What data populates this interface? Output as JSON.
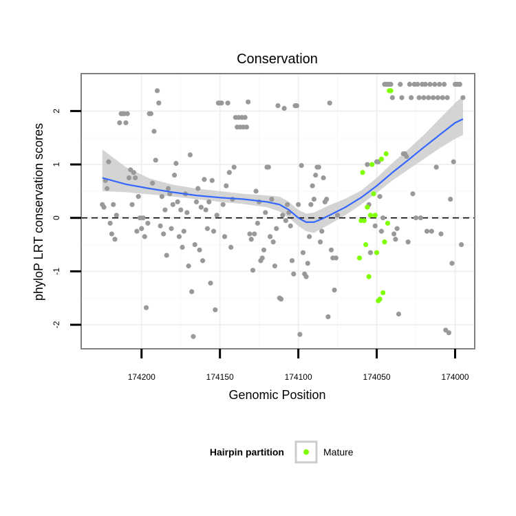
{
  "colors": {
    "background_point": "#999999",
    "mature_point": "#7fff00",
    "smooth_line": "#3366ff",
    "ribbon": "#cccccc",
    "panel_border": "#808080",
    "grid_major": "#f0f0f0",
    "grid_minor": "#f8f8f8"
  },
  "chart_data": {
    "type": "scatter",
    "title": "Conservation",
    "xlabel": "Genomic Position",
    "ylabel": "phyloP LRT conservation scores",
    "x_reversed": true,
    "xlim": [
      174238.5,
      173987.5
    ],
    "ylim": [
      -2.45,
      2.7
    ],
    "x_ticks": [
      174200,
      174150,
      174100,
      174050,
      174000
    ],
    "x_tick_labels": [
      "174200",
      "174150",
      "174100",
      "174050",
      "174000"
    ],
    "y_ticks": [
      -2,
      -1,
      0,
      1,
      2
    ],
    "y_tick_labels": [
      "-2",
      "-1",
      "0",
      "1",
      "2"
    ],
    "grid": true,
    "reference_line": {
      "y": 0,
      "style": "dashed"
    },
    "legend": {
      "title": "Hairpin partition",
      "position": "bottom",
      "entries": [
        {
          "label": "Mature",
          "color": "#7fff00"
        }
      ]
    },
    "series": [
      {
        "role": "background",
        "points": [
          [
            174225,
            0.25
          ],
          [
            174224,
            0.2
          ],
          [
            174223,
            0.7
          ],
          [
            174222,
            0.55
          ],
          [
            174221,
            1.05
          ],
          [
            174220,
            -0.1
          ],
          [
            174219,
            -0.3
          ],
          [
            174218,
            0.25
          ],
          [
            174217,
            -0.4
          ],
          [
            174216,
            0.05
          ],
          [
            174214,
            1.78
          ],
          [
            174213,
            1.95
          ],
          [
            174212,
            1.95
          ],
          [
            174211,
            1.95
          ],
          [
            174210,
            1.78
          ],
          [
            174209,
            1.95
          ],
          [
            174208,
            0.75
          ],
          [
            174207,
            0.9
          ],
          [
            174206,
            0.25
          ],
          [
            174205,
            0.85
          ],
          [
            174204,
            0.75
          ],
          [
            174203,
            -0.25
          ],
          [
            174202,
            0.4
          ],
          [
            174201,
            0.0
          ],
          [
            174200,
            -0.2
          ],
          [
            174199,
            0.0
          ],
          [
            174198,
            -0.35
          ],
          [
            174197,
            -1.68
          ],
          [
            174196,
            -0.1
          ],
          [
            174195,
            1.95
          ],
          [
            174194,
            1.95
          ],
          [
            174193,
            0.65
          ],
          [
            174192,
            1.62
          ],
          [
            174191,
            1.08
          ],
          [
            174190,
            2.38
          ],
          [
            174189,
            2.15
          ],
          [
            174188,
            -0.15
          ],
          [
            174187,
            0.4
          ],
          [
            174186,
            -0.3
          ],
          [
            174185,
            0.15
          ],
          [
            174184,
            -0.7
          ],
          [
            174183,
            0.55
          ],
          [
            174182,
            0.45
          ],
          [
            174181,
            -0.2
          ],
          [
            174180,
            0.25
          ],
          [
            174179,
            0.8
          ],
          [
            174178,
            1.02
          ],
          [
            174177,
            0.3
          ],
          [
            174176,
            -0.35
          ],
          [
            174175,
            0.15
          ],
          [
            174174,
            -0.55
          ],
          [
            174173,
            -0.25
          ],
          [
            174172,
            0.45
          ],
          [
            174171,
            0.1
          ],
          [
            174170,
            -0.9
          ],
          [
            174169,
            1.18
          ],
          [
            174168,
            -1.38
          ],
          [
            174167,
            -2.22
          ],
          [
            174166,
            -0.5
          ],
          [
            174165,
            0.3
          ],
          [
            174164,
            0.55
          ],
          [
            174163,
            -0.6
          ],
          [
            174162,
            0.2
          ],
          [
            174161,
            -0.8
          ],
          [
            174160,
            0.72
          ],
          [
            174159,
            0.15
          ],
          [
            174158,
            -0.2
          ],
          [
            174157,
            0.3
          ],
          [
            174156,
            -1.22
          ],
          [
            174155,
            0.7
          ],
          [
            174154,
            -0.25
          ],
          [
            174153,
            -1.72
          ],
          [
            174152,
            0.05
          ],
          [
            174151,
            2.15
          ],
          [
            174150,
            2.15
          ],
          [
            174149,
            2.15
          ],
          [
            174148,
            0.25
          ],
          [
            174147,
            -0.35
          ],
          [
            174146,
            0.6
          ],
          [
            174145,
            2.15
          ],
          [
            174144,
            0.85
          ],
          [
            174143,
            -0.55
          ],
          [
            174142,
            0.35
          ],
          [
            174141,
            0.95
          ],
          [
            174140,
            1.88
          ],
          [
            174139,
            1.7
          ],
          [
            174138,
            1.88
          ],
          [
            174137,
            1.7
          ],
          [
            174136,
            1.88
          ],
          [
            174135,
            1.7
          ],
          [
            174134,
            1.88
          ],
          [
            174133,
            1.7
          ],
          [
            174132,
            2.17
          ],
          [
            174131,
            -0.3
          ],
          [
            174130,
            -0.4
          ],
          [
            174129,
            -0.98
          ],
          [
            174128,
            -0.3
          ],
          [
            174127,
            0.5
          ],
          [
            174126,
            -0.1
          ],
          [
            174125,
            0.3
          ],
          [
            174124,
            -0.8
          ],
          [
            174123,
            -0.75
          ],
          [
            174122,
            -0.6
          ],
          [
            174121,
            0.1
          ],
          [
            174120,
            0.95
          ],
          [
            174119,
            0.95
          ],
          [
            174118,
            -0.35
          ],
          [
            174117,
            0.35
          ],
          [
            174116,
            -0.45
          ],
          [
            174115,
            -0.9
          ],
          [
            174114,
            -0.2
          ],
          [
            174113,
            2.1
          ],
          [
            174112,
            -1.5
          ],
          [
            174111,
            -1.52
          ],
          [
            174110,
            0.05
          ],
          [
            174109,
            2.05
          ],
          [
            174108,
            -0.05
          ],
          [
            174107,
            0.25
          ],
          [
            174106,
            0.1
          ],
          [
            174105,
            -0.15
          ],
          [
            174104,
            -0.8
          ],
          [
            174103,
            -1.05
          ],
          [
            174102,
            2.1
          ],
          [
            174101,
            2.1
          ],
          [
            174100,
            0.25
          ],
          [
            174099,
            -2.18
          ],
          [
            174098,
            0.98
          ],
          [
            174097,
            -0.65
          ],
          [
            174096,
            -1.05
          ],
          [
            174095,
            -1.1
          ],
          [
            174094,
            -0.85
          ],
          [
            174093,
            -0.35
          ],
          [
            174092,
            0.25
          ],
          [
            174091,
            0.6
          ],
          [
            174090,
            0.35
          ],
          [
            174089,
            0.8
          ],
          [
            174088,
            0.95
          ],
          [
            174087,
            0.95
          ],
          [
            174086,
            -0.45
          ],
          [
            174085,
            -0.25
          ],
          [
            174084,
            0.75
          ],
          [
            174083,
            0.3
          ],
          [
            174082,
            0.35
          ],
          [
            174081,
            -1.85
          ],
          [
            174080,
            2.15
          ],
          [
            174079,
            -0.6
          ],
          [
            174078,
            -0.75
          ],
          [
            174077,
            -1.35
          ],
          [
            174076,
            -0.75
          ],
          [
            174075,
            0.05
          ],
          [
            174056,
            1.0
          ],
          [
            174055,
            0.25
          ],
          [
            174054,
            -0.65
          ],
          [
            174051,
            -0.15
          ],
          [
            174050,
            1.05
          ],
          [
            174049,
            1.05
          ],
          [
            174048,
            0.4
          ],
          [
            174047,
            -0.25
          ],
          [
            174046,
            0.0
          ],
          [
            174045,
            2.5
          ],
          [
            174044,
            2.5
          ],
          [
            174043,
            2.5
          ],
          [
            174042,
            2.5
          ],
          [
            174041,
            2.5
          ],
          [
            174040,
            2.25
          ],
          [
            174039,
            -0.3
          ],
          [
            174038,
            -0.4
          ],
          [
            174037,
            -0.2
          ],
          [
            174036,
            -1.8
          ],
          [
            174035,
            2.5
          ],
          [
            174034,
            2.25
          ],
          [
            174033,
            1.2
          ],
          [
            174032,
            1.2
          ],
          [
            174031,
            1.15
          ],
          [
            174030,
            -0.45
          ],
          [
            174029,
            2.5
          ],
          [
            174028,
            2.25
          ],
          [
            174027,
            0.45
          ],
          [
            174026,
            2.5
          ],
          [
            174025,
            0.0
          ],
          [
            174024,
            2.5
          ],
          [
            174023,
            2.25
          ],
          [
            174022,
            0.0
          ],
          [
            174021,
            2.5
          ],
          [
            174020,
            2.25
          ],
          [
            174019,
            2.5
          ],
          [
            174018,
            -0.25
          ],
          [
            174017,
            2.25
          ],
          [
            174016,
            2.5
          ],
          [
            174015,
            -0.25
          ],
          [
            174014,
            2.25
          ],
          [
            174013,
            2.5
          ],
          [
            174012,
            0.95
          ],
          [
            174011,
            2.25
          ],
          [
            174010,
            2.5
          ],
          [
            174009,
            -0.3
          ],
          [
            174008,
            2.25
          ],
          [
            174007,
            2.5
          ],
          [
            174006,
            -2.1
          ],
          [
            174005,
            2.25
          ],
          [
            174004,
            -2.15
          ],
          [
            174003,
            0.35
          ],
          [
            174002,
            -0.85
          ],
          [
            174001,
            1.05
          ],
          [
            174000,
            2.5
          ],
          [
            173999,
            2.5
          ],
          [
            173998,
            2.5
          ],
          [
            173997,
            2.5
          ],
          [
            173996,
            -0.5
          ],
          [
            173995,
            2.25
          ]
        ]
      },
      {
        "name": "Mature",
        "points": [
          [
            174061,
            -0.75
          ],
          [
            174060,
            -0.05
          ],
          [
            174059,
            0.85
          ],
          [
            174058,
            -0.05
          ],
          [
            174057,
            -0.5
          ],
          [
            174056,
            0.2
          ],
          [
            174055,
            -1.1
          ],
          [
            174054,
            0.05
          ],
          [
            174053,
            1.0
          ],
          [
            174052,
            0.45
          ],
          [
            174051,
            0.05
          ],
          [
            174050,
            -0.65
          ],
          [
            174049,
            -1.55
          ],
          [
            174048,
            -1.52
          ],
          [
            174047,
            1.1
          ],
          [
            174046,
            -1.4
          ],
          [
            174045,
            -0.45
          ],
          [
            174044,
            1.2
          ],
          [
            174043,
            -0.1
          ],
          [
            174042,
            2.38
          ],
          [
            174041,
            2.38
          ]
        ]
      }
    ],
    "smooth": [
      [
        174225,
        0.75
      ],
      [
        174210,
        0.63
      ],
      [
        174195,
        0.55
      ],
      [
        174180,
        0.48
      ],
      [
        174165,
        0.42
      ],
      [
        174150,
        0.38
      ],
      [
        174135,
        0.35
      ],
      [
        174120,
        0.3
      ],
      [
        174112,
        0.25
      ],
      [
        174106,
        0.15
      ],
      [
        174100,
        0.0
      ],
      [
        174095,
        -0.08
      ],
      [
        174090,
        -0.08
      ],
      [
        174085,
        -0.02
      ],
      [
        174080,
        0.05
      ],
      [
        174070,
        0.2
      ],
      [
        174060,
        0.38
      ],
      [
        174050,
        0.6
      ],
      [
        174040,
        0.85
      ],
      [
        174030,
        1.08
      ],
      [
        174020,
        1.32
      ],
      [
        174010,
        1.55
      ],
      [
        174000,
        1.78
      ],
      [
        173995,
        1.85
      ]
    ],
    "ribbon_lower": [
      [
        174225,
        0.5
      ],
      [
        174210,
        0.48
      ],
      [
        174195,
        0.44
      ],
      [
        174180,
        0.4
      ],
      [
        174165,
        0.35
      ],
      [
        174150,
        0.3
      ],
      [
        174135,
        0.26
      ],
      [
        174120,
        0.2
      ],
      [
        174112,
        0.12
      ],
      [
        174106,
        0.0
      ],
      [
        174100,
        -0.15
      ],
      [
        174095,
        -0.25
      ],
      [
        174090,
        -0.28
      ],
      [
        174085,
        -0.2
      ],
      [
        174080,
        -0.12
      ],
      [
        174070,
        0.05
      ],
      [
        174060,
        0.25
      ],
      [
        174050,
        0.47
      ],
      [
        174040,
        0.7
      ],
      [
        174030,
        0.9
      ],
      [
        174020,
        1.1
      ],
      [
        174010,
        1.3
      ],
      [
        174000,
        1.48
      ],
      [
        173995,
        1.55
      ]
    ],
    "ribbon_upper": [
      [
        174225,
        1.28
      ],
      [
        174210,
        0.95
      ],
      [
        174195,
        0.74
      ],
      [
        174180,
        0.62
      ],
      [
        174165,
        0.55
      ],
      [
        174150,
        0.5
      ],
      [
        174135,
        0.45
      ],
      [
        174120,
        0.42
      ],
      [
        174112,
        0.4
      ],
      [
        174106,
        0.3
      ],
      [
        174100,
        0.15
      ],
      [
        174095,
        0.08
      ],
      [
        174090,
        0.1
      ],
      [
        174085,
        0.17
      ],
      [
        174080,
        0.24
      ],
      [
        174070,
        0.36
      ],
      [
        174060,
        0.51
      ],
      [
        174050,
        0.75
      ],
      [
        174040,
        1.03
      ],
      [
        174030,
        1.28
      ],
      [
        174020,
        1.55
      ],
      [
        174010,
        1.85
      ],
      [
        174000,
        2.15
      ],
      [
        173995,
        2.28
      ]
    ]
  }
}
